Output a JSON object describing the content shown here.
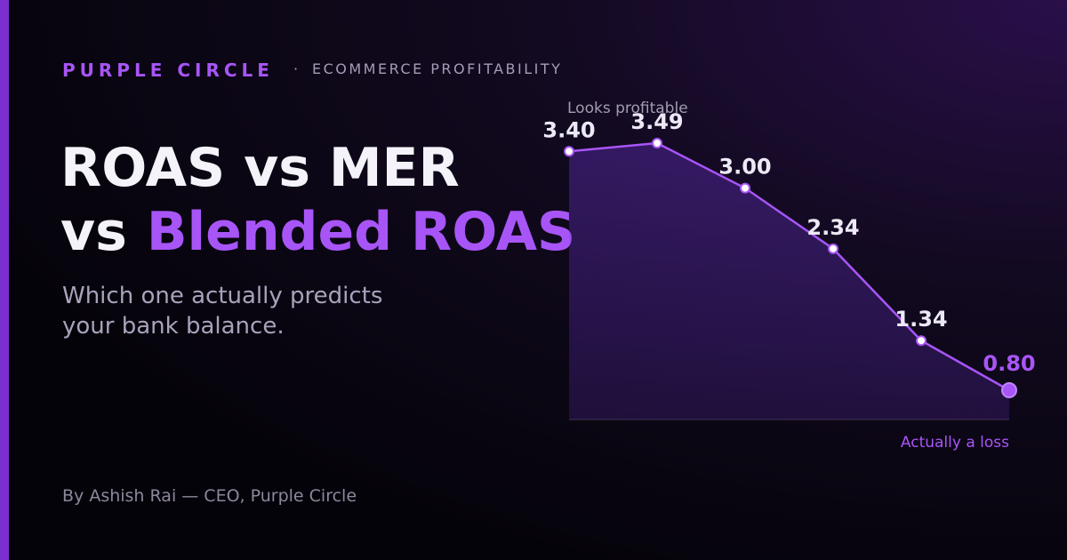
{
  "brand": "PURPLE CIRCLE",
  "separator": "·",
  "kicker": "ECOMMERCE PROFITABILITY",
  "headline": {
    "line1": "ROAS vs MER",
    "line2_prefix": "vs",
    "line2_highlight": "Blended ROAS"
  },
  "subtitle": [
    "Which one actually predicts",
    "your bank balance."
  ],
  "byline": "By Ashish Rai — CEO, Purple Circle",
  "chart_data": {
    "type": "line",
    "categories": [
      null,
      null,
      null,
      null,
      null,
      null
    ],
    "values": [
      3.4,
      3.49,
      3.0,
      2.34,
      1.34,
      0.8
    ],
    "value_labels": [
      "3.40",
      "3.49",
      "3.00",
      "2.34",
      "1.34",
      "0.80"
    ],
    "color": "#a855f7",
    "annotations": [
      "Looks profitable",
      "Actually a loss"
    ]
  }
}
